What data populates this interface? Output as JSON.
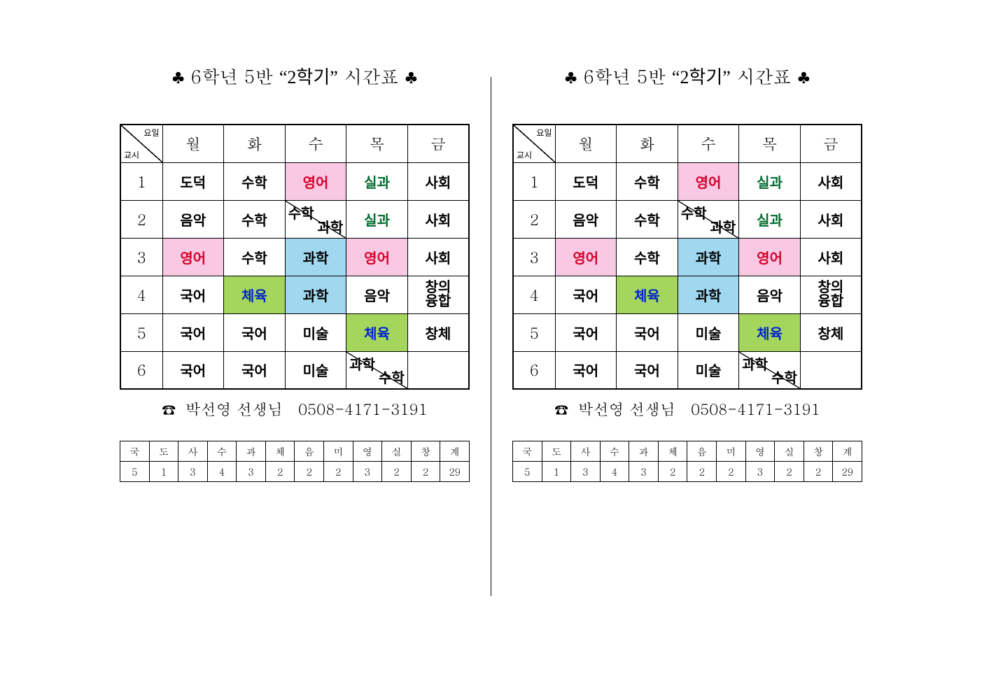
{
  "title_prefix": "6학년 5반",
  "title_quoted": "2학기",
  "title_suffix": "시간표",
  "club": "♣",
  "corner_top": "요일",
  "corner_bottom": "교시",
  "days": [
    "월",
    "화",
    "수",
    "목",
    "금"
  ],
  "periods": [
    "1",
    "2",
    "3",
    "4",
    "5",
    "6"
  ],
  "colors": {
    "pink": "#f9c9e3",
    "blue": "#9fd8ef",
    "green": "#a4d65e",
    "red_text": "#d6002a",
    "green_text": "#006b2e",
    "blue_text": "#0022cc",
    "border": "#000000",
    "background": "#ffffff"
  },
  "typography": {
    "title_fontsize": 26,
    "day_fontsize": 22,
    "cell_fontsize": 20,
    "split_fontsize": 16,
    "teacher_fontsize": 22,
    "summary_fontsize": 14
  },
  "grid": [
    [
      {
        "text": "도덕"
      },
      {
        "text": "수학"
      },
      {
        "text": "영어",
        "bg": "pink",
        "fg": "red"
      },
      {
        "text": "실과",
        "fg": "green"
      },
      {
        "text": "사회"
      }
    ],
    [
      {
        "text": "음악"
      },
      {
        "text": "수학"
      },
      {
        "split": [
          "수학",
          "과학"
        ]
      },
      {
        "text": "실과",
        "fg": "green"
      },
      {
        "text": "사회"
      }
    ],
    [
      {
        "text": "영어",
        "bg": "pink",
        "fg": "red"
      },
      {
        "text": "수학"
      },
      {
        "text": "과학",
        "bg": "blue"
      },
      {
        "text": "영어",
        "bg": "pink",
        "fg": "red"
      },
      {
        "text": "사회"
      }
    ],
    [
      {
        "text": "국어"
      },
      {
        "text": "체육",
        "bg": "green",
        "fg": "blue"
      },
      {
        "text": "과학",
        "bg": "blue"
      },
      {
        "text": "음악"
      },
      {
        "twoline": [
          "창의",
          "융합"
        ]
      }
    ],
    [
      {
        "text": "국어"
      },
      {
        "text": "국어"
      },
      {
        "text": "미술"
      },
      {
        "text": "체육",
        "bg": "green",
        "fg": "blue"
      },
      {
        "text": "창체"
      }
    ],
    [
      {
        "text": "국어"
      },
      {
        "text": "국어"
      },
      {
        "text": "미술"
      },
      {
        "split": [
          "과학",
          "수학"
        ]
      },
      {
        "text": ""
      }
    ]
  ],
  "teacher_icon": "☎",
  "teacher_name": "박선영 선생님",
  "teacher_phone": "0508-4171-3191",
  "summary_labels": [
    "국",
    "도",
    "사",
    "수",
    "과",
    "체",
    "음",
    "미",
    "영",
    "실",
    "창",
    "계"
  ],
  "summary_values": [
    "5",
    "1",
    "3",
    "4",
    "3",
    "2",
    "2",
    "2",
    "3",
    "2",
    "2",
    "29"
  ]
}
